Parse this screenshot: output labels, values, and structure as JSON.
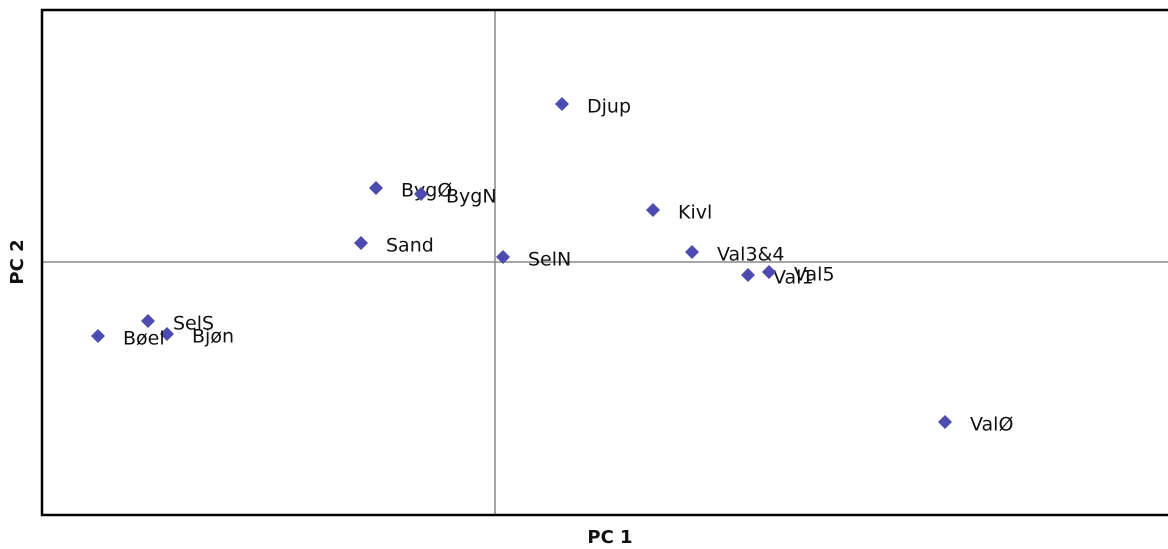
{
  "chart_data": {
    "type": "scatter",
    "xlabel": "PC 1",
    "ylabel": "PC 2",
    "labels": [
      "Djup",
      "BygØ",
      "BygN",
      "Kivl",
      "Sand",
      "SelN",
      "Val3&4",
      "Val1",
      "Val5",
      "SelS",
      "Bjøn",
      "Bøel",
      "ValØ"
    ],
    "x": [
      0.67,
      -1.19,
      -0.74,
      1.58,
      -1.34,
      0.08,
      1.97,
      2.53,
      2.74,
      -3.47,
      -3.28,
      -3.97,
      4.5
    ],
    "y": [
      1.58,
      0.74,
      0.68,
      0.52,
      0.19,
      0.05,
      0.1,
      -0.13,
      -0.1,
      -0.59,
      -0.72,
      -0.74,
      -1.6
    ],
    "xlim": [
      -4.53,
      6.73
    ],
    "ylim": [
      -2.53,
      2.52
    ],
    "color": "#4b4bb0",
    "marker": "diamond",
    "zero_lines": true
  }
}
